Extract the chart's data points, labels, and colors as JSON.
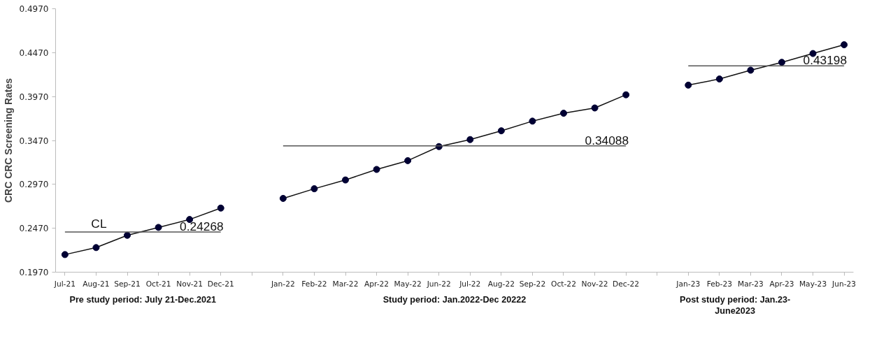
{
  "chart_data": {
    "type": "line",
    "ylabel": "CRC CRC Screening Rates",
    "categories": [
      "Jul-21",
      "Aug-21",
      "Sep-21",
      "Oct-21",
      "Nov-21",
      "Dec-21",
      null,
      "Jan-22",
      "Feb-22",
      "Mar-22",
      "Apr-22",
      "May-22",
      "Jun-22",
      "Jul-22",
      "Aug-22",
      "Sep-22",
      "Oct-22",
      "Nov-22",
      "Dec-22",
      null,
      "Jan-23",
      "Feb-23",
      "Mar-23",
      "Apr-23",
      "May-23",
      "Jun-23"
    ],
    "series": [
      {
        "color": "#000033",
        "marker": "circle",
        "values": [
          0.217,
          0.225,
          0.239,
          0.248,
          0.257,
          0.27,
          null,
          0.281,
          0.292,
          0.302,
          0.314,
          0.324,
          0.34,
          0.348,
          0.358,
          0.369,
          0.378,
          0.384,
          0.399,
          null,
          0.41,
          0.417,
          0.427,
          0.436,
          0.446,
          0.456
        ]
      },
      {
        "color": "#555555",
        "marker": "none",
        "values": [
          0.24268,
          0.24268,
          0.24268,
          0.24268,
          0.24268,
          0.24268,
          null,
          null,
          null,
          null,
          null,
          null,
          null,
          null,
          null,
          null,
          null,
          null,
          null,
          null,
          null,
          null,
          null,
          null,
          null,
          null
        ]
      },
      {
        "color": "#555555",
        "marker": "none",
        "values": [
          null,
          null,
          null,
          null,
          null,
          null,
          null,
          0.34088,
          0.34088,
          0.34088,
          0.34088,
          0.34088,
          0.34088,
          0.34088,
          0.34088,
          0.34088,
          0.34088,
          0.34088,
          0.34088,
          null,
          null,
          null,
          null,
          null,
          null,
          null
        ]
      },
      {
        "color": "#555555",
        "marker": "none",
        "values": [
          null,
          null,
          null,
          null,
          null,
          null,
          null,
          null,
          null,
          null,
          null,
          null,
          null,
          null,
          null,
          null,
          null,
          null,
          null,
          null,
          0.43198,
          0.43198,
          0.43198,
          0.43198,
          0.43198,
          0.43198
        ]
      }
    ],
    "ylim": [
      0.197,
      0.497
    ],
    "yticks": [
      {
        "value": 0.197,
        "label": "0.1970"
      },
      {
        "value": 0.247,
        "label": "0.2470"
      },
      {
        "value": 0.297,
        "label": "0.2970"
      },
      {
        "value": 0.347,
        "label": "0.3470"
      },
      {
        "value": 0.397,
        "label": "0.3970"
      },
      {
        "value": 0.447,
        "label": "0.4470"
      },
      {
        "value": 0.497,
        "label": "0.4970"
      }
    ],
    "grid": false,
    "annotations": [
      {
        "text": "CL",
        "x": "Aug-21",
        "y": 0.24268
      },
      {
        "text": "0.24268",
        "x": "Dec-21",
        "y": 0.24268
      },
      {
        "text": "0.34088",
        "x": "Dec-22",
        "y": 0.34088
      },
      {
        "text": "0.43198",
        "x": "Jun-23",
        "y": 0.43198
      },
      "Pre study period: July 21-Dec.2021",
      "Study period: Jan.2022-Dec 20222",
      "Post study period: Jan.23-\nJune2023"
    ]
  }
}
